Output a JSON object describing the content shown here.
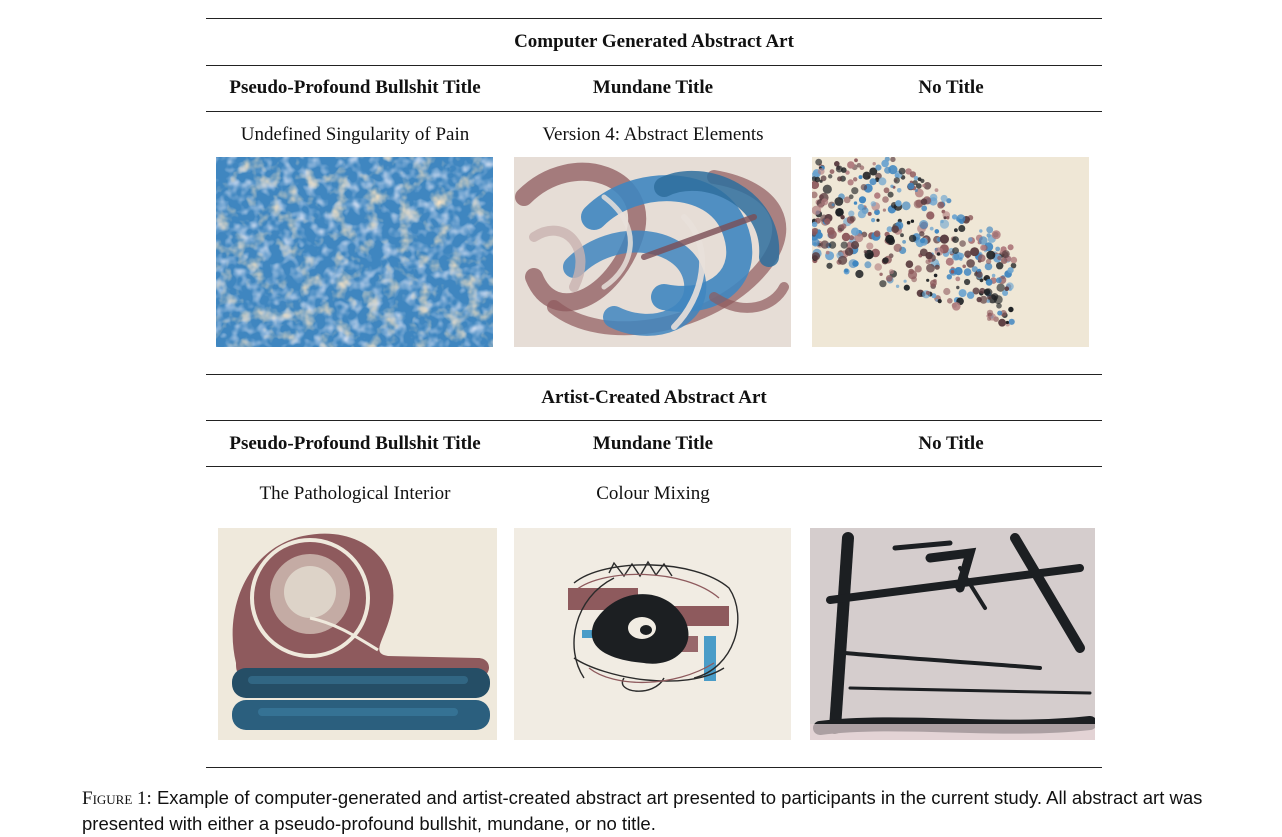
{
  "sections": [
    {
      "title": "Computer Generated Abstract Art",
      "columns": [
        "Pseudo-Profound Bullshit Title",
        "Mundane Title",
        "No Title"
      ],
      "titles": [
        "Undefined Singularity of Pain",
        "Version 4: Abstract Elements",
        ""
      ]
    },
    {
      "title": "Artist-Created Abstract Art",
      "columns": [
        "Pseudo-Profound Bullshit Title",
        "Mundane Title",
        "No Title"
      ],
      "titles": [
        "The Pathological Interior",
        "Colour Mixing",
        ""
      ]
    }
  ],
  "caption": {
    "label": "Figure 1:",
    "text": "Example of computer-generated and artist-created abstract art presented to participants in the current study. All abstract art was presented with either a pseudo-profound bullshit, mundane, or no title."
  },
  "colors": {
    "blue": "#3f86c0",
    "mauve": "#8e5a5d",
    "cream": "#efe7d6",
    "dark": "#1c1f22"
  }
}
